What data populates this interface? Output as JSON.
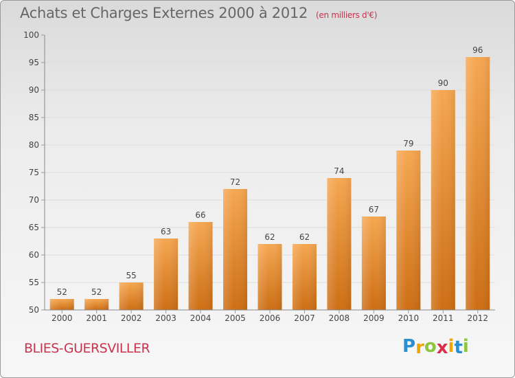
{
  "header": {
    "title": "Achats et Charges Externes 2000 à 2012",
    "unit": "(en milliers d'€)"
  },
  "footer": {
    "commune": "BLIES-GUERSVILLER",
    "logo": {
      "letters": [
        "P",
        "r",
        "o",
        "x",
        "i",
        "t",
        "i"
      ],
      "colors": [
        "#2a8fd0",
        "#f0a400",
        "#8cc63f",
        "#d8304a",
        "#f0a400",
        "#2a8fd0",
        "#8cc63f"
      ]
    }
  },
  "colors": {
    "bar_top": "#f6a751",
    "bar_bottom": "#cd6e14",
    "grid": "#dddddd",
    "axis_text": "#444444",
    "title_text": "#666666",
    "accent": "#c8334e"
  },
  "chart_data": {
    "type": "bar",
    "title": "Achats et Charges Externes 2000 à 2012",
    "subtitle": "(en milliers d'€)",
    "xlabel": "",
    "ylabel": "",
    "categories": [
      "2000",
      "2001",
      "2002",
      "2003",
      "2004",
      "2005",
      "2006",
      "2007",
      "2008",
      "2009",
      "2010",
      "2011",
      "2012"
    ],
    "values": [
      52,
      52,
      55,
      63,
      66,
      72,
      62,
      62,
      74,
      67,
      79,
      90,
      96
    ],
    "data_labels": [
      "52",
      "52",
      "55",
      "63",
      "66",
      "72",
      "62",
      "62",
      "74",
      "67",
      "79",
      "90",
      "96"
    ],
    "ylim": [
      50,
      100
    ],
    "yticks": [
      50,
      55,
      60,
      65,
      70,
      75,
      80,
      85,
      90,
      95,
      100
    ],
    "ytick_labels": [
      "50",
      "55",
      "60",
      "65",
      "70",
      "75",
      "80",
      "85",
      "90",
      "95",
      "100"
    ],
    "grid": true,
    "legend": "none"
  }
}
